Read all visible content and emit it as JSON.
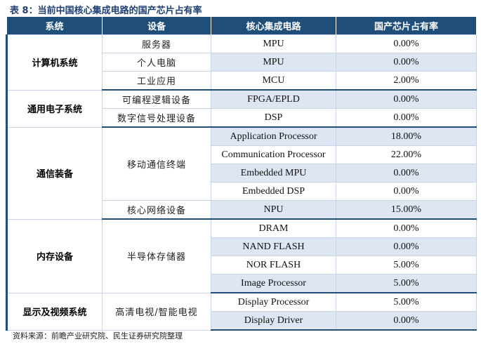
{
  "title": "表 8：当前中国核心集成电路的国产芯片占有率",
  "headers": [
    "系统",
    "设备",
    "核心集成电路",
    "国产芯片占有率"
  ],
  "groups": [
    {
      "system": "计算机系统",
      "devices": [
        {
          "name": "服务器",
          "rows": [
            {
              "chip": "MPU",
              "share": "0.00%"
            }
          ]
        },
        {
          "name": "个人电脑",
          "rows": [
            {
              "chip": "MPU",
              "share": "0.00%"
            }
          ]
        },
        {
          "name": "工业应用",
          "rows": [
            {
              "chip": "MCU",
              "share": "2.00%"
            }
          ]
        }
      ]
    },
    {
      "system": "通用电子系统",
      "devices": [
        {
          "name": "可编程逻辑设备",
          "rows": [
            {
              "chip": "FPGA/EPLD",
              "share": "0.00%"
            }
          ]
        },
        {
          "name": "数字信号处理设备",
          "rows": [
            {
              "chip": "DSP",
              "share": "0.00%"
            }
          ]
        }
      ]
    },
    {
      "system": "通信装备",
      "devices": [
        {
          "name": "移动通信终端",
          "rows": [
            {
              "chip": "Application Processor",
              "share": "18.00%"
            },
            {
              "chip": "Communication Processor",
              "share": "22.00%"
            },
            {
              "chip": "Embedded MPU",
              "share": "0.00%"
            },
            {
              "chip": "Embedded DSP",
              "share": "0.00%"
            }
          ]
        },
        {
          "name": "核心网络设备",
          "rows": [
            {
              "chip": "NPU",
              "share": "15.00%"
            }
          ]
        }
      ]
    },
    {
      "system": "内存设备",
      "devices": [
        {
          "name": "半导体存储器",
          "rows": [
            {
              "chip": "DRAM",
              "share": "0.00%"
            },
            {
              "chip": "NAND FLASH",
              "share": "0.00%"
            },
            {
              "chip": "NOR FLASH",
              "share": "5.00%"
            },
            {
              "chip": "Image Processor",
              "share": "5.00%"
            }
          ]
        }
      ]
    },
    {
      "system": "显示及视频系统",
      "devices": [
        {
          "name": "高清电视/智能电视",
          "rows": [
            {
              "chip": "Display Processor",
              "share": "5.00%"
            },
            {
              "chip": "Display Driver",
              "share": "0.00%"
            }
          ]
        }
      ]
    }
  ],
  "source": "资料来源：前瞻产业研究院、民生证券研究院整理",
  "colors": {
    "header_bg": "#1f4e79",
    "alt_row_bg": "#dde6f2",
    "title_color": "#1f3f73"
  }
}
